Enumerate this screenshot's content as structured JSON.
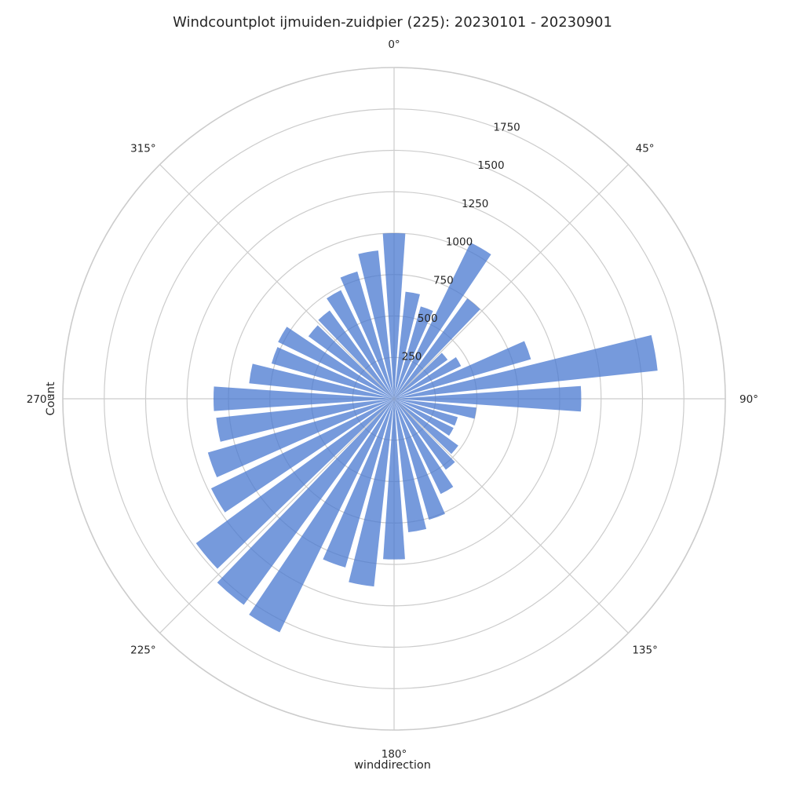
{
  "chart_data": {
    "type": "polar-bar",
    "title": "Windcountplot ijmuiden-zuidpier (225): 20230101 - 20230901",
    "xlabel": "winddirection",
    "ylabel": "Count",
    "theta_zero": "N",
    "theta_direction": "clockwise",
    "angle_ticks": [
      {
        "angle": 0,
        "label": "0°"
      },
      {
        "angle": 45,
        "label": "45°"
      },
      {
        "angle": 90,
        "label": "90°"
      },
      {
        "angle": 135,
        "label": "135°"
      },
      {
        "angle": 180,
        "label": "180°"
      },
      {
        "angle": 225,
        "label": "225°"
      },
      {
        "angle": 270,
        "label": "270°"
      },
      {
        "angle": 315,
        "label": "315°"
      }
    ],
    "radial_ticks": [
      250,
      500,
      750,
      1000,
      1250,
      1500,
      1750
    ],
    "radial_tick_labels": [
      "250",
      "500",
      "750",
      "1000",
      "1250",
      "1500",
      "1750"
    ],
    "rlim": [
      0,
      2000
    ],
    "bin_width_deg": 10,
    "bar_color": "#4878d0",
    "bar_alpha": 0.75,
    "directions": [
      0,
      10,
      20,
      30,
      40,
      50,
      60,
      70,
      80,
      90,
      100,
      110,
      120,
      130,
      140,
      150,
      160,
      170,
      180,
      190,
      200,
      210,
      220,
      230,
      240,
      250,
      260,
      270,
      280,
      290,
      300,
      310,
      320,
      330,
      340,
      350
    ],
    "values": [
      1000,
      650,
      580,
      1050,
      750,
      400,
      450,
      860,
      1600,
      1130,
      500,
      400,
      400,
      480,
      530,
      640,
      760,
      810,
      970,
      1140,
      1060,
      1570,
      1540,
      1480,
      1230,
      1170,
      1080,
      1090,
      880,
      770,
      780,
      640,
      660,
      730,
      800,
      900
    ]
  }
}
